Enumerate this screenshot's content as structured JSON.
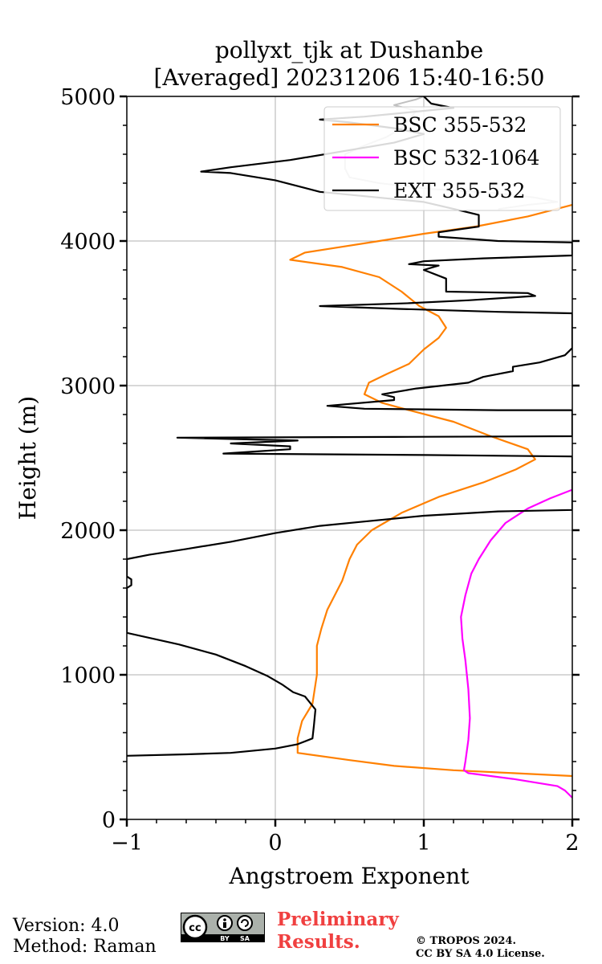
{
  "chart_data": {
    "type": "line",
    "title": "pollyxt_tjk at Dushanbe",
    "subtitle": "[Averaged] 20231206 15:40-16:50",
    "xlabel": "Angstroem Exponent",
    "ylabel": "Height (m)",
    "xlim": [
      -1,
      2
    ],
    "ylim": [
      0,
      5000
    ],
    "xticks": [
      "−1",
      "0",
      "1",
      "2"
    ],
    "yticks": [
      "0",
      "1000",
      "2000",
      "3000",
      "4000",
      "5000"
    ],
    "grid": true,
    "legend_position": "top-right",
    "series": [
      {
        "name": "BSC 355-532",
        "color": "#ff8000",
        "points": [
          [
            2.0,
            300
          ],
          [
            1.6,
            320
          ],
          [
            1.2,
            340
          ],
          [
            0.8,
            370
          ],
          [
            0.5,
            410
          ],
          [
            0.15,
            460
          ],
          [
            0.15,
            560
          ],
          [
            0.18,
            680
          ],
          [
            0.25,
            800
          ],
          [
            0.28,
            1000
          ],
          [
            0.28,
            1200
          ],
          [
            0.31,
            1320
          ],
          [
            0.35,
            1450
          ],
          [
            0.45,
            1650
          ],
          [
            0.5,
            1800
          ],
          [
            0.55,
            1900
          ],
          [
            0.65,
            2000
          ],
          [
            0.85,
            2120
          ],
          [
            1.1,
            2230
          ],
          [
            1.4,
            2330
          ],
          [
            1.62,
            2420
          ],
          [
            1.75,
            2490
          ],
          [
            1.7,
            2560
          ],
          [
            1.45,
            2650
          ],
          [
            1.2,
            2750
          ],
          [
            0.9,
            2830
          ],
          [
            0.72,
            2880
          ],
          [
            0.6,
            2940
          ],
          [
            0.63,
            3020
          ],
          [
            0.75,
            3080
          ],
          [
            0.9,
            3150
          ],
          [
            1.0,
            3250
          ],
          [
            1.1,
            3330
          ],
          [
            1.15,
            3400
          ],
          [
            1.1,
            3480
          ],
          [
            0.97,
            3550
          ],
          [
            0.85,
            3650
          ],
          [
            0.7,
            3750
          ],
          [
            0.45,
            3820
          ],
          [
            0.1,
            3870
          ],
          [
            0.2,
            3920
          ],
          [
            0.45,
            3960
          ],
          [
            0.7,
            4000
          ],
          [
            1.0,
            4050
          ],
          [
            1.35,
            4100
          ],
          [
            1.7,
            4170
          ],
          [
            2.0,
            4250
          ]
        ]
      },
      {
        "name": "BSC 532-1064",
        "color": "#ff00ff",
        "points": [
          [
            2.0,
            150
          ],
          [
            1.95,
            200
          ],
          [
            1.9,
            230
          ],
          [
            1.6,
            280
          ],
          [
            1.3,
            320
          ],
          [
            1.27,
            340
          ],
          [
            1.28,
            400
          ],
          [
            1.3,
            550
          ],
          [
            1.31,
            700
          ],
          [
            1.3,
            900
          ],
          [
            1.28,
            1100
          ],
          [
            1.26,
            1250
          ],
          [
            1.25,
            1400
          ],
          [
            1.28,
            1550
          ],
          [
            1.32,
            1700
          ],
          [
            1.37,
            1800
          ],
          [
            1.45,
            1930
          ],
          [
            1.55,
            2050
          ],
          [
            1.7,
            2150
          ],
          [
            1.85,
            2220
          ],
          [
            2.0,
            2280
          ]
        ]
      },
      {
        "name": "EXT 355-532",
        "color": "#000000",
        "points": [
          [
            -1.0,
            440
          ],
          [
            -0.6,
            450
          ],
          [
            -0.3,
            460
          ],
          [
            0.0,
            490
          ],
          [
            0.15,
            520
          ],
          [
            0.25,
            560
          ],
          [
            0.26,
            650
          ],
          [
            0.27,
            760
          ],
          [
            0.2,
            850
          ],
          [
            0.12,
            880
          ],
          [
            0.05,
            930
          ],
          [
            -0.05,
            990
          ],
          [
            -0.2,
            1060
          ],
          [
            -0.4,
            1140
          ],
          [
            -0.65,
            1210
          ],
          [
            -1.0,
            1290
          ],
          [
            -1.0,
            1600
          ],
          [
            -0.97,
            1620
          ],
          [
            -0.97,
            1660
          ],
          [
            -1.0,
            1680
          ],
          [
            -1.0,
            1800
          ],
          [
            -0.85,
            1830
          ],
          [
            -0.6,
            1870
          ],
          [
            -0.3,
            1920
          ],
          [
            0.0,
            1980
          ],
          [
            0.3,
            2030
          ],
          [
            0.6,
            2060
          ],
          [
            1.0,
            2100
          ],
          [
            1.5,
            2130
          ],
          [
            2.0,
            2140
          ],
          [
            2.0,
            2510
          ],
          [
            1.0,
            2520
          ],
          [
            -0.35,
            2530
          ],
          [
            0.1,
            2560
          ],
          [
            0.1,
            2580
          ],
          [
            -0.3,
            2600
          ],
          [
            0.15,
            2620
          ],
          [
            -0.66,
            2640
          ],
          [
            0.8,
            2645
          ],
          [
            2.0,
            2650
          ],
          [
            2.0,
            2830
          ],
          [
            1.5,
            2830
          ],
          [
            0.6,
            2840
          ],
          [
            0.35,
            2860
          ],
          [
            0.8,
            2900
          ],
          [
            0.8,
            2920
          ],
          [
            0.72,
            2940
          ],
          [
            0.95,
            2980
          ],
          [
            1.3,
            3020
          ],
          [
            1.4,
            3060
          ],
          [
            1.6,
            3100
          ],
          [
            1.6,
            3130
          ],
          [
            1.78,
            3160
          ],
          [
            1.95,
            3210
          ],
          [
            2.0,
            3260
          ],
          [
            2.0,
            3500
          ],
          [
            1.5,
            3510
          ],
          [
            0.85,
            3530
          ],
          [
            0.3,
            3550
          ],
          [
            0.9,
            3570
          ],
          [
            1.3,
            3590
          ],
          [
            1.75,
            3620
          ],
          [
            1.7,
            3640
          ],
          [
            1.15,
            3650
          ],
          [
            1.15,
            3740
          ],
          [
            1.1,
            3760
          ],
          [
            1.0,
            3800
          ],
          [
            1.1,
            3830
          ],
          [
            0.9,
            3840
          ],
          [
            1.0,
            3860
          ],
          [
            1.4,
            3880
          ],
          [
            2.0,
            3900
          ],
          [
            2.0,
            3990
          ],
          [
            1.5,
            4000
          ],
          [
            1.1,
            4030
          ],
          [
            1.1,
            4060
          ],
          [
            1.37,
            4100
          ],
          [
            1.37,
            4180
          ],
          [
            1.25,
            4210
          ],
          [
            1.0,
            4270
          ],
          [
            0.6,
            4310
          ],
          [
            0.3,
            4340
          ],
          [
            0.0,
            4420
          ],
          [
            -0.3,
            4470
          ],
          [
            -0.5,
            4480
          ],
          [
            -0.3,
            4510
          ],
          [
            0.1,
            4560
          ],
          [
            0.45,
            4620
          ],
          [
            0.8,
            4680
          ],
          [
            1.0,
            4740
          ],
          [
            0.8,
            4780
          ],
          [
            0.5,
            4820
          ],
          [
            0.3,
            4840
          ],
          [
            0.6,
            4860
          ],
          [
            0.9,
            4890
          ],
          [
            1.2,
            4920
          ],
          [
            1.05,
            4950
          ],
          [
            1.0,
            5000
          ]
        ]
      },
      {
        "name": "",
        "color": "#c0c0c0",
        "points": [
          [
            1.5,
            4220
          ],
          [
            1.7,
            4250
          ],
          [
            1.9,
            4270
          ],
          [
            1.75,
            4300
          ],
          [
            1.5,
            4330
          ],
          [
            1.05,
            4360
          ],
          [
            0.7,
            4400
          ],
          [
            0.5,
            4440
          ],
          [
            0.47,
            4500
          ],
          [
            0.47,
            4600
          ],
          [
            0.6,
            4660
          ],
          [
            0.75,
            4720
          ],
          [
            0.85,
            4780
          ],
          [
            0.9,
            4840
          ],
          [
            0.95,
            4900
          ],
          [
            0.8,
            4940
          ],
          [
            0.95,
            4980
          ],
          [
            1.0,
            5000
          ]
        ]
      }
    ]
  },
  "footer": {
    "version": "Version: 4.0",
    "method": "Method: Raman",
    "preliminary_line1": "Preliminary",
    "preliminary_line2": "Results.",
    "copyright_line1": "© TROPOS 2024.",
    "copyright_line2": "CC BY SA 4.0 License.",
    "badge_cc": "cc",
    "badge_by": "BY",
    "badge_sa": "SA"
  }
}
